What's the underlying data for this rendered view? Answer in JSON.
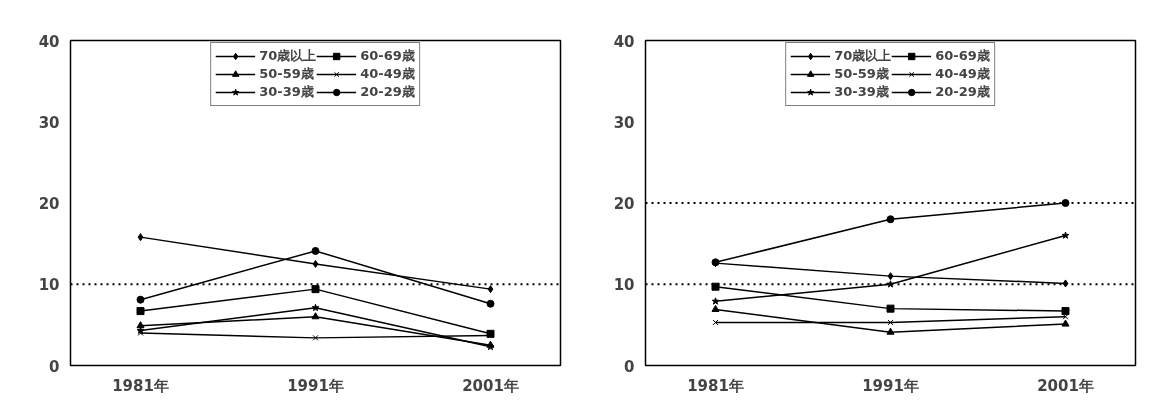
{
  "chart_data": [
    {
      "type": "line",
      "categories": [
        "1981年",
        "1991年",
        "2001年"
      ],
      "ylim": [
        0,
        40
      ],
      "yticks": [
        0,
        10,
        20,
        30,
        40
      ],
      "grid": false,
      "legend": "top",
      "series": [
        {
          "name": "70歳以上",
          "color": "#000000",
          "marker": "diamond",
          "values": [
            15.8,
            12.5,
            9.4
          ]
        },
        {
          "name": "60-69歳",
          "color": "#000000",
          "marker": "square",
          "values": [
            6.7,
            9.4,
            3.9
          ]
        },
        {
          "name": "50-59歳",
          "color": "#000000",
          "marker": "triangle",
          "values": [
            4.9,
            6.0,
            2.5
          ]
        },
        {
          "name": "40-49歳",
          "color": "#000000",
          "marker": "cross",
          "values": [
            4.0,
            3.4,
            3.7
          ]
        },
        {
          "name": "30-39歳",
          "color": "#000000",
          "marker": "star",
          "values": [
            4.3,
            7.1,
            2.3
          ]
        },
        {
          "name": "20-29歳",
          "color": "#000000",
          "marker": "circle",
          "values": [
            8.1,
            14.1,
            7.6
          ]
        }
      ],
      "ref_lines": [
        {
          "axis": "y",
          "value": 10,
          "line_style": "dotted"
        }
      ]
    },
    {
      "type": "line",
      "categories": [
        "1981年",
        "1991年",
        "2001年"
      ],
      "ylim": [
        0,
        40
      ],
      "yticks": [
        0,
        10,
        20,
        30,
        40
      ],
      "grid": false,
      "legend": "top",
      "series": [
        {
          "name": "70歳以上",
          "color": "#000000",
          "marker": "diamond",
          "values": [
            12.6,
            11.0,
            10.1
          ]
        },
        {
          "name": "60-69歳",
          "color": "#000000",
          "marker": "square",
          "values": [
            9.7,
            7.0,
            6.7
          ]
        },
        {
          "name": "50-59歳",
          "color": "#000000",
          "marker": "triangle",
          "values": [
            6.9,
            4.1,
            5.1
          ]
        },
        {
          "name": "40-49歳",
          "color": "#000000",
          "marker": "cross",
          "values": [
            5.3,
            5.3,
            6.0
          ]
        },
        {
          "name": "30-39歳",
          "color": "#000000",
          "marker": "star",
          "values": [
            7.9,
            10.0,
            16.0
          ]
        },
        {
          "name": "20-29歳",
          "color": "#000000",
          "marker": "circle",
          "values": [
            12.7,
            18.0,
            20.0
          ]
        }
      ],
      "ref_lines": [
        {
          "axis": "y",
          "value": 10,
          "line_style": "dotted"
        },
        {
          "axis": "y",
          "value": 20,
          "line_style": "dotted"
        }
      ]
    }
  ]
}
